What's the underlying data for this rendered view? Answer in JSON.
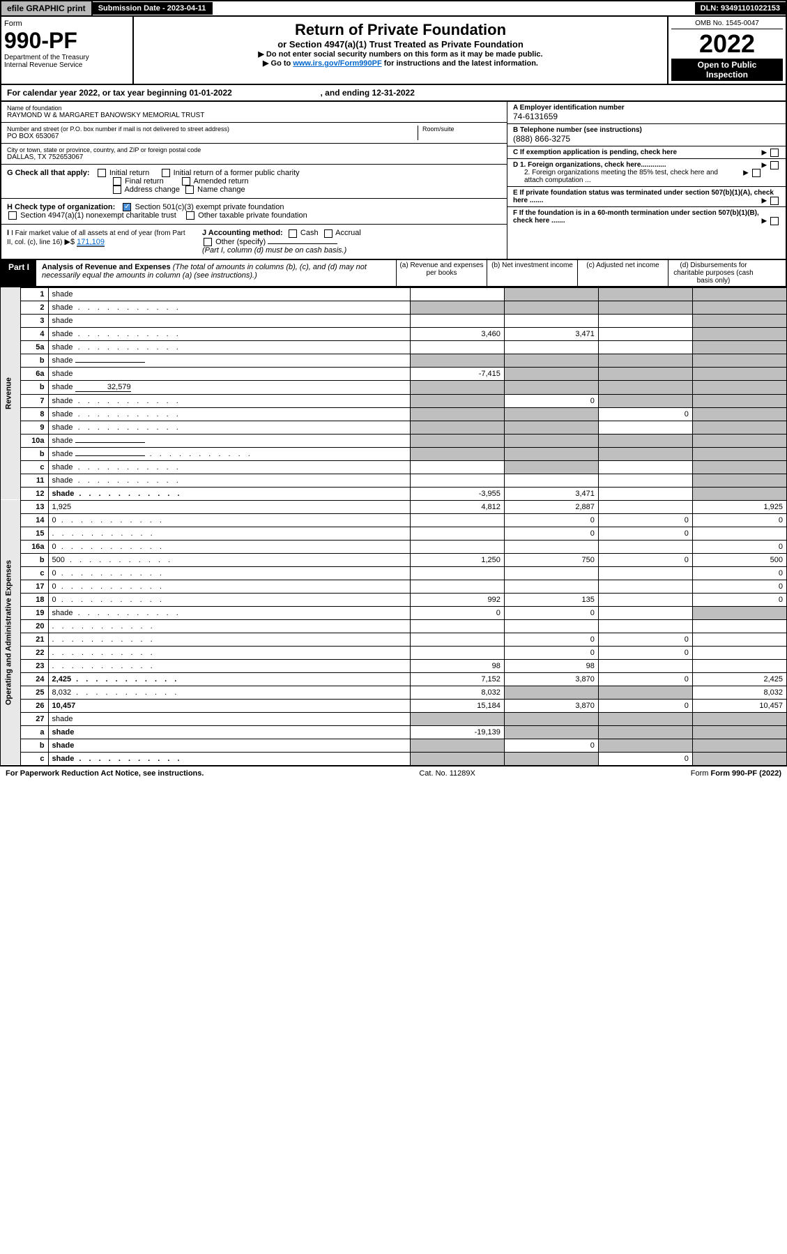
{
  "header": {
    "efile": "efile GRAPHIC print",
    "submission": "Submission Date - 2023-04-11",
    "dln": "DLN: 93491101022153"
  },
  "form": {
    "form_label": "Form",
    "number": "990-PF",
    "dept": "Department of the Treasury",
    "irs": "Internal Revenue Service",
    "title": "Return of Private Foundation",
    "subtitle": "or Section 4947(a)(1) Trust Treated as Private Foundation",
    "instr1": "▶ Do not enter social security numbers on this form as it may be made public.",
    "instr2_pre": "▶ Go to ",
    "instr2_link": "www.irs.gov/Form990PF",
    "instr2_post": " for instructions and the latest information.",
    "omb": "OMB No. 1545-0047",
    "year": "2022",
    "inspect1": "Open to Public",
    "inspect2": "Inspection"
  },
  "cal": {
    "text1": "For calendar year 2022, or tax year beginning 01-01-2022",
    "text2": ", and ending 12-31-2022"
  },
  "entity": {
    "name_label": "Name of foundation",
    "name": "RAYMOND W & MARGARET BANOWSKY MEMORIAL TRUST",
    "addr_label": "Number and street (or P.O. box number if mail is not delivered to street address)",
    "addr": "PO BOX 653067",
    "room_label": "Room/suite",
    "city_label": "City or town, state or province, country, and ZIP or foreign postal code",
    "city": "DALLAS, TX  752653067",
    "ein_label": "A Employer identification number",
    "ein": "74-6131659",
    "tel_label": "B Telephone number (see instructions)",
    "tel": "(888) 866-3275",
    "c_label": "C If exemption application is pending, check here",
    "d1": "D 1. Foreign organizations, check here.............",
    "d2": "2. Foreign organizations meeting the 85% test, check here and attach computation ...",
    "e_label": "E  If private foundation status was terminated under section 507(b)(1)(A), check here .......",
    "f_label": "F  If the foundation is in a 60-month termination under section 507(b)(1)(B), check here .......",
    "g_label": "G Check all that apply:",
    "g_initial": "Initial return",
    "g_initial_former": "Initial return of a former public charity",
    "g_final": "Final return",
    "g_amended": "Amended return",
    "g_address": "Address change",
    "g_name": "Name change",
    "h_label": "H Check type of organization:",
    "h_501c3": "Section 501(c)(3) exempt private foundation",
    "h_4947": "Section 4947(a)(1) nonexempt charitable trust",
    "h_other": "Other taxable private foundation",
    "i_label": "I Fair market value of all assets at end of year (from Part II, col. (c), line 16)",
    "i_value": "171,109",
    "j_label": "J Accounting method:",
    "j_cash": "Cash",
    "j_accrual": "Accrual",
    "j_other": "Other (specify)",
    "j_note": "(Part I, column (d) must be on cash basis.)"
  },
  "part1": {
    "label": "Part I",
    "title": "Analysis of Revenue and Expenses",
    "note": "(The total of amounts in columns (b), (c), and (d) may not necessarily equal the amounts in column (a) (see instructions).)",
    "col_a": "(a)   Revenue and expenses per books",
    "col_b": "(b)   Net investment income",
    "col_c": "(c)   Adjusted net income",
    "col_d": "(d)   Disbursements for charitable purposes (cash basis only)"
  },
  "side": {
    "revenue": "Revenue",
    "expenses": "Operating and Administrative Expenses"
  },
  "rows": [
    {
      "n": "1",
      "d": "shade",
      "a": "",
      "b": "shade",
      "c": "shade"
    },
    {
      "n": "2",
      "d": "shade",
      "dots": true,
      "a": "shade",
      "b": "shade",
      "c": "shade",
      "bold_not": true
    },
    {
      "n": "3",
      "d": "shade",
      "a": "",
      "b": "",
      "c": ""
    },
    {
      "n": "4",
      "d": "shade",
      "dots": true,
      "a": "3,460",
      "b": "3,471",
      "c": ""
    },
    {
      "n": "5a",
      "d": "shade",
      "dots": true,
      "a": "",
      "b": "",
      "c": ""
    },
    {
      "n": "b",
      "d": "shade",
      "underline": true,
      "a": "shade",
      "b": "shade",
      "c": "shade"
    },
    {
      "n": "6a",
      "d": "shade",
      "a": "-7,415",
      "b": "shade",
      "c": "shade"
    },
    {
      "n": "b",
      "d": "shade",
      "underline_val": "32,579",
      "a": "shade",
      "b": "shade",
      "c": "shade"
    },
    {
      "n": "7",
      "d": "shade",
      "dots": true,
      "a": "shade",
      "b": "0",
      "c": "shade"
    },
    {
      "n": "8",
      "d": "shade",
      "dots": true,
      "a": "shade",
      "b": "shade",
      "c": "0"
    },
    {
      "n": "9",
      "d": "shade",
      "dots": true,
      "a": "shade",
      "b": "shade",
      "c": ""
    },
    {
      "n": "10a",
      "d": "shade",
      "underline": true,
      "a": "shade",
      "b": "shade",
      "c": "shade"
    },
    {
      "n": "b",
      "d": "shade",
      "dots": true,
      "underline": true,
      "a": "shade",
      "b": "shade",
      "c": "shade"
    },
    {
      "n": "c",
      "d": "shade",
      "dots": true,
      "a": "",
      "b": "shade",
      "c": ""
    },
    {
      "n": "11",
      "d": "shade",
      "dots": true,
      "a": "",
      "b": "",
      "c": ""
    },
    {
      "n": "12",
      "d": "shade",
      "dots": true,
      "bold": true,
      "a": "-3,955",
      "b": "3,471",
      "c": ""
    },
    {
      "n": "13",
      "d": "1,925",
      "a": "4,812",
      "b": "2,887",
      "c": ""
    },
    {
      "n": "14",
      "d": "0",
      "dots": true,
      "a": "",
      "b": "0",
      "c": "0"
    },
    {
      "n": "15",
      "d": "",
      "dots": true,
      "a": "",
      "b": "0",
      "c": "0"
    },
    {
      "n": "16a",
      "d": "0",
      "dots": true,
      "a": "",
      "b": "",
      "c": ""
    },
    {
      "n": "b",
      "d": "500",
      "dots": true,
      "a": "1,250",
      "b": "750",
      "c": "0"
    },
    {
      "n": "c",
      "d": "0",
      "dots": true,
      "a": "",
      "b": "",
      "c": ""
    },
    {
      "n": "17",
      "d": "0",
      "dots": true,
      "a": "",
      "b": "",
      "c": ""
    },
    {
      "n": "18",
      "d": "0",
      "dots": true,
      "a": "992",
      "b": "135",
      "c": ""
    },
    {
      "n": "19",
      "d": "shade",
      "dots": true,
      "a": "0",
      "b": "0",
      "c": ""
    },
    {
      "n": "20",
      "d": "",
      "dots": true,
      "a": "",
      "b": "",
      "c": ""
    },
    {
      "n": "21",
      "d": "",
      "dots": true,
      "a": "",
      "b": "0",
      "c": "0"
    },
    {
      "n": "22",
      "d": "",
      "dots": true,
      "a": "",
      "b": "0",
      "c": "0"
    },
    {
      "n": "23",
      "d": "",
      "dots": true,
      "a": "98",
      "b": "98",
      "c": ""
    },
    {
      "n": "24",
      "d": "2,425",
      "dots": true,
      "bold": true,
      "a": "7,152",
      "b": "3,870",
      "c": "0"
    },
    {
      "n": "25",
      "d": "8,032",
      "dots": true,
      "a": "8,032",
      "b": "shade",
      "c": "shade"
    },
    {
      "n": "26",
      "d": "10,457",
      "bold": true,
      "a": "15,184",
      "b": "3,870",
      "c": "0"
    },
    {
      "n": "27",
      "d": "shade",
      "a": "shade",
      "b": "shade",
      "c": "shade"
    },
    {
      "n": "a",
      "d": "shade",
      "bold": true,
      "a": "-19,139",
      "b": "shade",
      "c": "shade"
    },
    {
      "n": "b",
      "d": "shade",
      "bold": true,
      "a": "shade",
      "b": "0",
      "c": "shade"
    },
    {
      "n": "c",
      "d": "shade",
      "dots": true,
      "bold": true,
      "a": "shade",
      "b": "shade",
      "c": "0"
    }
  ],
  "footer": {
    "left": "For Paperwork Reduction Act Notice, see instructions.",
    "mid": "Cat. No. 11289X",
    "right": "Form 990-PF (2022)"
  }
}
